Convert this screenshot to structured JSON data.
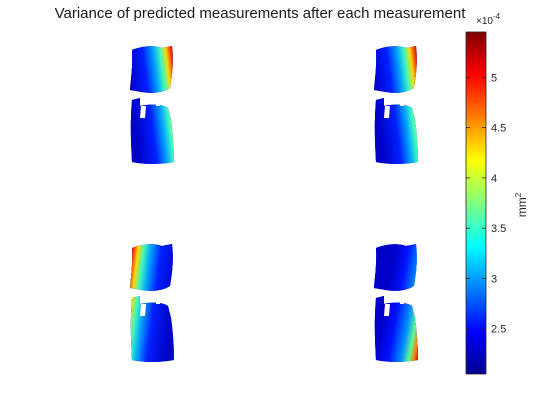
{
  "chart_data": {
    "type": "heatmap",
    "title": "Variance of predicted measurements after each measurement",
    "colorbar": {
      "colormap": "jet",
      "range": [
        2.05,
        5.45
      ],
      "ticks": [
        2.5,
        3,
        3.5,
        4,
        4.5,
        5
      ],
      "tick_labels": [
        "2.5",
        "3",
        "3.5",
        "4",
        "4.5",
        "5"
      ],
      "exponent": "×10",
      "exponent_power": "-4",
      "unit_base": "mm",
      "unit_power": "2"
    },
    "panels": [
      {
        "name": "panel-1",
        "hot_corner": "top-right",
        "minor_hot": "bottom-right"
      },
      {
        "name": "panel-2",
        "hot_corner": "top-right",
        "minor_hot": "bottom-right"
      },
      {
        "name": "panel-3",
        "hot_corner": "top-left",
        "minor_hot": "bottom-right"
      },
      {
        "name": "panel-4",
        "hot_corner": "bottom-right",
        "minor_hot": "top-right"
      }
    ]
  }
}
